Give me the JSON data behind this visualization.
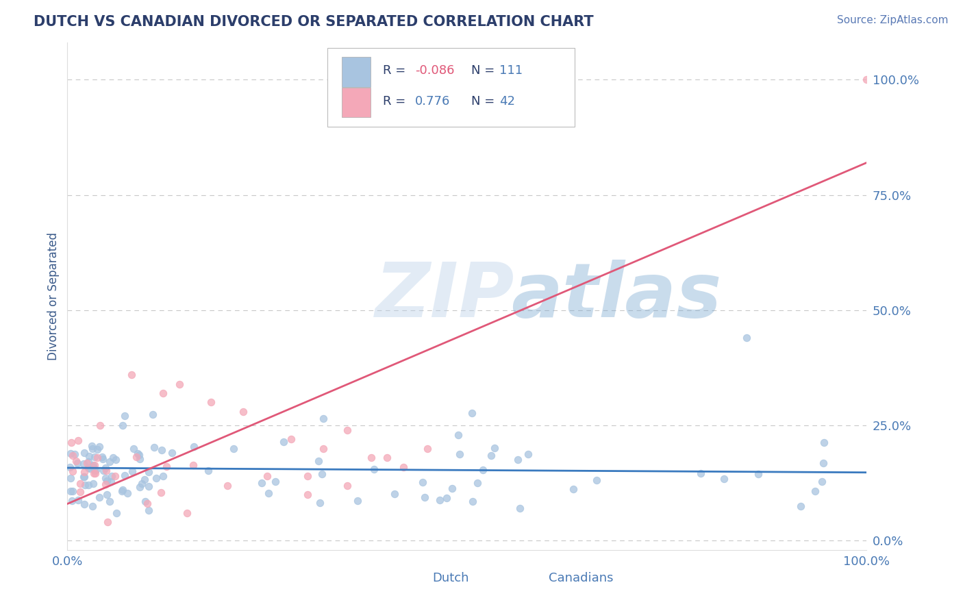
{
  "title": "DUTCH VS CANADIAN DIVORCED OR SEPARATED CORRELATION CHART",
  "source": "Source: ZipAtlas.com",
  "ylabel": "Divorced or Separated",
  "xlim": [
    0.0,
    1.0
  ],
  "ylim": [
    -0.02,
    1.08
  ],
  "ytick_positions": [
    0.0,
    0.25,
    0.5,
    0.75,
    1.0
  ],
  "ytick_labels": [
    "0.0%",
    "25.0%",
    "50.0%",
    "75.0%",
    "100.0%"
  ],
  "xtick_positions": [
    0.0,
    1.0
  ],
  "xtick_labels": [
    "0.0%",
    "100.0%"
  ],
  "dutch_color": "#a8c4e0",
  "canadian_color": "#f4a8b8",
  "dutch_line_color": "#3a7abf",
  "canadian_line_color": "#e05878",
  "R_dutch": "-0.086",
  "N_dutch": "111",
  "R_canadian": "0.776",
  "N_canadian": "42",
  "legend_label_dutch": "Dutch",
  "legend_label_canadian": "Canadians",
  "watermark_zip": "ZIP",
  "watermark_atlas": "atlas",
  "title_color": "#2c3e6b",
  "source_color": "#5a7ab5",
  "axis_label_color": "#3a5a8a",
  "tick_label_color": "#4a7ab5",
  "legend_R_label_color": "#2c3e6b",
  "legend_R_value_color_dutch": "#e05878",
  "legend_R_value_color_canadian": "#4a7ab5",
  "legend_N_label_color": "#2c3e6b",
  "legend_N_value_color": "#4a7ab5",
  "grid_color": "#c8c8c8",
  "background_color": "#ffffff",
  "dutch_line_y0": 0.158,
  "dutch_line_y1": 0.148,
  "canadian_line_y0": 0.08,
  "canadian_line_y1": 0.82
}
